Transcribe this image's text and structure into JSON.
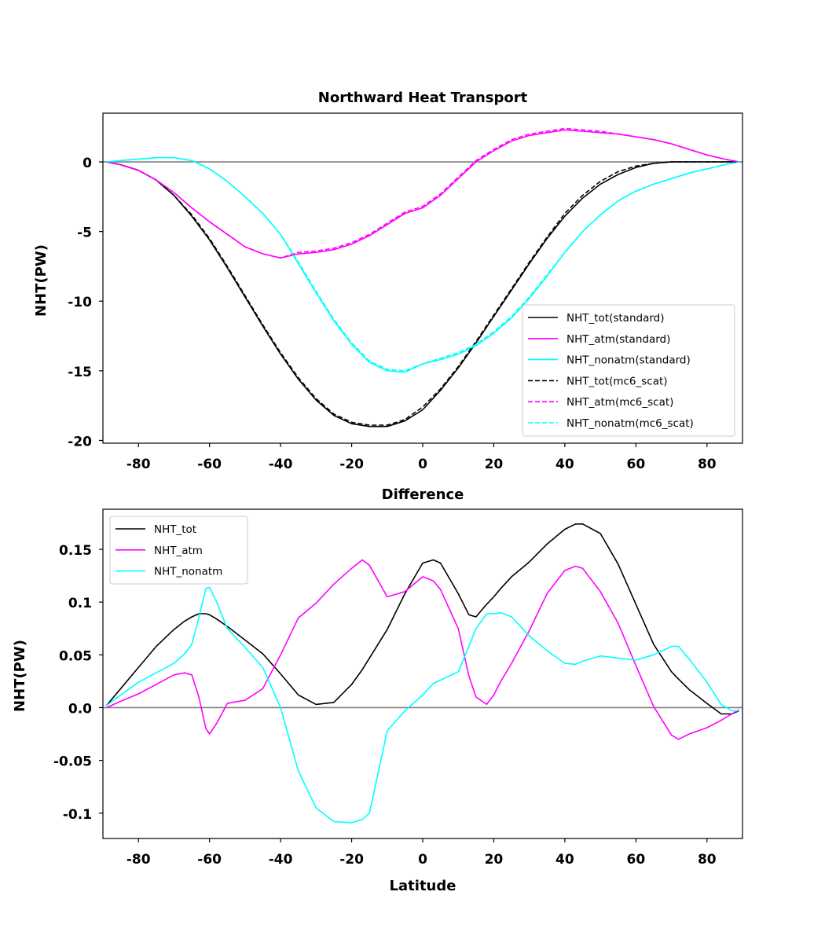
{
  "chart_data": [
    {
      "type": "line",
      "title": "Northward Heat Transport",
      "xlabel": "",
      "ylabel": "NHT(PW)",
      "xlim": [
        -90,
        90
      ],
      "ylim": [
        -20.2,
        3.5
      ],
      "xticks": [
        -80,
        -60,
        -40,
        -20,
        0,
        20,
        40,
        60,
        80
      ],
      "xtick_labels": [
        "-80",
        "-60",
        "-40",
        "-20",
        "0",
        "20",
        "40",
        "60",
        "80"
      ],
      "yticks": [
        0,
        -5,
        -10,
        -15,
        -20
      ],
      "ytick_labels": [
        "0",
        "-5",
        "-10",
        "-15",
        "-20"
      ],
      "zero_line": true,
      "legend_position": "lower right",
      "x": [
        -89,
        -85,
        -80,
        -75,
        -70,
        -65,
        -60,
        -55,
        -50,
        -45,
        -40,
        -35,
        -30,
        -25,
        -20,
        -15,
        -10,
        -5,
        0,
        5,
        10,
        15,
        20,
        25,
        30,
        35,
        40,
        45,
        50,
        55,
        60,
        65,
        70,
        75,
        80,
        85,
        89
      ],
      "series": [
        {
          "name": "NHT_tot(standard)",
          "color": "#000000",
          "dash": "solid",
          "values": [
            0,
            -0.2,
            -0.6,
            -1.3,
            -2.4,
            -3.9,
            -5.6,
            -7.6,
            -9.7,
            -11.8,
            -13.8,
            -15.6,
            -17.1,
            -18.2,
            -18.8,
            -19.0,
            -19.0,
            -18.6,
            -17.8,
            -16.4,
            -14.8,
            -13.0,
            -11.1,
            -9.2,
            -7.3,
            -5.5,
            -3.9,
            -2.6,
            -1.6,
            -0.9,
            -0.4,
            -0.1,
            0,
            0,
            0,
            0,
            0
          ]
        },
        {
          "name": "NHT_atm(standard)",
          "color": "#ff00ff",
          "dash": "solid",
          "values": [
            0,
            -0.2,
            -0.6,
            -1.3,
            -2.2,
            -3.3,
            -4.3,
            -5.2,
            -6.1,
            -6.6,
            -6.9,
            -6.6,
            -6.5,
            -6.3,
            -5.9,
            -5.3,
            -4.5,
            -3.7,
            -3.3,
            -2.4,
            -1.2,
            0.0,
            0.8,
            1.5,
            1.9,
            2.1,
            2.3,
            2.2,
            2.1,
            2.0,
            1.8,
            1.6,
            1.3,
            0.9,
            0.5,
            0.2,
            0
          ]
        },
        {
          "name": "NHT_nonatm(standard)",
          "color": "#00ffff",
          "dash": "solid",
          "values": [
            0,
            0.1,
            0.2,
            0.3,
            0.3,
            0.1,
            -0.5,
            -1.4,
            -2.5,
            -3.7,
            -5.2,
            -7.3,
            -9.4,
            -11.4,
            -13.1,
            -14.4,
            -15.0,
            -15.1,
            -14.5,
            -14.2,
            -13.8,
            -13.2,
            -12.3,
            -11.2,
            -9.8,
            -8.2,
            -6.5,
            -5.0,
            -3.8,
            -2.8,
            -2.1,
            -1.6,
            -1.2,
            -0.8,
            -0.5,
            -0.2,
            0
          ]
        },
        {
          "name": "NHT_tot(mc6_scat)",
          "color": "#000000",
          "dash": "dashed",
          "values": [
            0,
            -0.2,
            -0.6,
            -1.3,
            -2.4,
            -3.8,
            -5.5,
            -7.5,
            -9.6,
            -11.7,
            -13.7,
            -15.5,
            -17.0,
            -18.1,
            -18.7,
            -18.9,
            -18.9,
            -18.5,
            -17.6,
            -16.3,
            -14.7,
            -12.9,
            -11.0,
            -9.1,
            -7.2,
            -5.4,
            -3.7,
            -2.4,
            -1.4,
            -0.7,
            -0.3,
            -0.1,
            0,
            0,
            0,
            0,
            0
          ]
        },
        {
          "name": "NHT_atm(mc6_scat)",
          "color": "#ff00ff",
          "dash": "dashed",
          "values": [
            0,
            -0.2,
            -0.6,
            -1.3,
            -2.2,
            -3.3,
            -4.3,
            -5.2,
            -6.1,
            -6.6,
            -6.9,
            -6.5,
            -6.4,
            -6.2,
            -5.8,
            -5.2,
            -4.4,
            -3.6,
            -3.2,
            -2.3,
            -1.1,
            0.1,
            0.9,
            1.6,
            2.0,
            2.2,
            2.4,
            2.3,
            2.2,
            2.0,
            1.8,
            1.6,
            1.3,
            0.9,
            0.5,
            0.2,
            0
          ]
        },
        {
          "name": "NHT_nonatm(mc6_scat)",
          "color": "#00ffff",
          "dash": "dashed",
          "values": [
            0,
            0.1,
            0.2,
            0.3,
            0.3,
            0.1,
            -0.5,
            -1.4,
            -2.5,
            -3.7,
            -5.2,
            -7.2,
            -9.3,
            -11.3,
            -13.0,
            -14.3,
            -14.9,
            -15.0,
            -14.5,
            -14.1,
            -13.7,
            -13.1,
            -12.2,
            -11.1,
            -9.7,
            -8.1,
            -6.5,
            -5.0,
            -3.8,
            -2.8,
            -2.1,
            -1.6,
            -1.2,
            -0.8,
            -0.5,
            -0.2,
            0
          ]
        }
      ]
    },
    {
      "type": "line",
      "title": "Difference",
      "xlabel": "Latitude",
      "ylabel": "NHT(PW)",
      "xlim": [
        -90,
        90
      ],
      "ylim": [
        -0.124,
        0.188
      ],
      "xticks": [
        -80,
        -60,
        -40,
        -20,
        0,
        20,
        40,
        60,
        80
      ],
      "xtick_labels": [
        "-80",
        "-60",
        "-40",
        "-20",
        "0",
        "20",
        "40",
        "60",
        "80"
      ],
      "yticks": [
        0.15,
        0.1,
        0.05,
        0.0,
        -0.05,
        -0.1
      ],
      "ytick_labels": [
        "0.15",
        "0.1",
        "0.05",
        "0.0",
        "-0.05",
        "-0.1"
      ],
      "zero_line": true,
      "legend_position": "upper left",
      "x": [
        -89,
        -85,
        -80,
        -75,
        -70,
        -67,
        -65,
        -63,
        -61,
        -60,
        -58,
        -55,
        -50,
        -45,
        -40,
        -35,
        -30,
        -25,
        -20,
        -17,
        -15,
        -10,
        -5,
        0,
        3,
        5,
        10,
        13,
        15,
        18,
        20,
        22,
        25,
        30,
        35,
        40,
        43,
        45,
        50,
        55,
        60,
        65,
        70,
        72,
        75,
        80,
        84,
        87,
        89
      ],
      "series": [
        {
          "name": "NHT_tot",
          "color": "#000000",
          "dash": "solid",
          "values": [
            0.002,
            0.018,
            0.038,
            0.058,
            0.074,
            0.082,
            0.086,
            0.089,
            0.089,
            0.088,
            0.084,
            0.077,
            0.064,
            0.051,
            0.032,
            0.012,
            0.003,
            0.005,
            0.022,
            0.036,
            0.047,
            0.074,
            0.108,
            0.137,
            0.14,
            0.137,
            0.108,
            0.088,
            0.086,
            0.098,
            0.105,
            0.113,
            0.124,
            0.138,
            0.155,
            0.169,
            0.174,
            0.174,
            0.165,
            0.136,
            0.098,
            0.06,
            0.034,
            0.027,
            0.017,
            0.004,
            -0.006,
            -0.006,
            -0.003
          ]
        },
        {
          "name": "NHT_atm",
          "color": "#ff00ff",
          "dash": "solid",
          "values": [
            0.0,
            0.006,
            0.013,
            0.022,
            0.031,
            0.033,
            0.031,
            0.01,
            -0.02,
            -0.025,
            -0.015,
            0.004,
            0.007,
            0.018,
            0.05,
            0.085,
            0.099,
            0.117,
            0.132,
            0.14,
            0.135,
            0.105,
            0.11,
            0.124,
            0.12,
            0.112,
            0.075,
            0.03,
            0.01,
            0.003,
            0.012,
            0.025,
            0.042,
            0.073,
            0.108,
            0.13,
            0.134,
            0.132,
            0.11,
            0.08,
            0.04,
            0.001,
            -0.026,
            -0.03,
            -0.025,
            -0.019,
            -0.012,
            -0.006,
            -0.002
          ]
        },
        {
          "name": "NHT_nonatm",
          "color": "#00ffff",
          "dash": "solid",
          "values": [
            0.002,
            0.012,
            0.024,
            0.033,
            0.042,
            0.051,
            0.06,
            0.085,
            0.113,
            0.114,
            0.1,
            0.075,
            0.057,
            0.038,
            0.0,
            -0.06,
            -0.095,
            -0.108,
            -0.109,
            -0.106,
            -0.1,
            -0.022,
            -0.003,
            0.012,
            0.023,
            0.026,
            0.034,
            0.058,
            0.075,
            0.089,
            0.089,
            0.09,
            0.086,
            0.068,
            0.054,
            0.042,
            0.041,
            0.044,
            0.049,
            0.047,
            0.045,
            0.05,
            0.058,
            0.058,
            0.046,
            0.024,
            0.003,
            -0.003,
            -0.003
          ]
        }
      ]
    }
  ]
}
